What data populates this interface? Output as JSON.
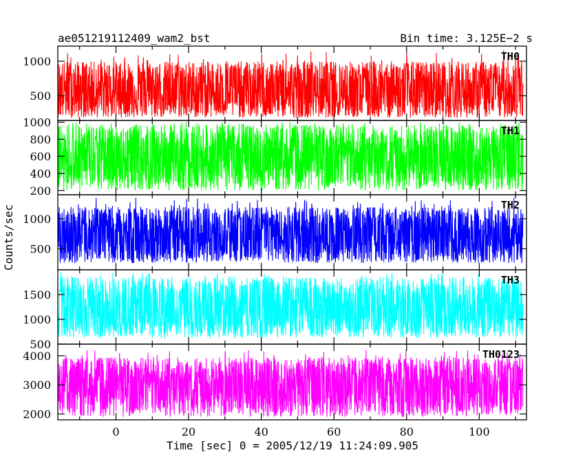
{
  "chart_data": {
    "type": "line",
    "title_left": "ae051219112409_wam2_bst",
    "title_right": "Bin time: 3.125E−2 s",
    "ylabel": "Counts/sec",
    "xlabel": "Time [sec] 0 = 2005/12/19 11:24:09.905",
    "xlim": [
      -16,
      113
    ],
    "x_ticks": [
      0,
      20,
      40,
      60,
      80,
      100
    ],
    "x_tick_labels": [
      "0",
      "20",
      "40",
      "60",
      "80",
      "100"
    ],
    "data_x_range": [
      -16,
      112
    ],
    "bin_time": 0.03125,
    "panels": [
      {
        "name": "TH0",
        "color": "#ff0000",
        "ylim": [
          140,
          1220
        ],
        "y_ticks": [
          500,
          1000
        ],
        "y_tick_labels": [
          "500",
          "1000"
        ],
        "mean": 560,
        "typical_min": 180,
        "typical_max": 1000,
        "max_peak": 1180
      },
      {
        "name": "TH1",
        "color": "#00ff00",
        "ylim": [
          150,
          1020
        ],
        "y_ticks": [
          200,
          400,
          600,
          800,
          1000
        ],
        "y_tick_labels": [
          "200",
          "400",
          "600",
          "800",
          "1000"
        ],
        "mean": 580,
        "typical_min": 200,
        "typical_max": 970,
        "max_peak": 1000
      },
      {
        "name": "TH2",
        "color": "#0000ff",
        "ylim": [
          150,
          1400
        ],
        "y_ticks": [
          500,
          1000
        ],
        "y_tick_labels": [
          "500",
          "1000"
        ],
        "mean": 700,
        "typical_min": 260,
        "typical_max": 1200,
        "max_peak": 1350
      },
      {
        "name": "TH3",
        "color": "#00ffff",
        "ylim": [
          500,
          2000
        ],
        "y_ticks": [
          500,
          1000,
          1500
        ],
        "y_tick_labels": [
          "500",
          "1000",
          "1500"
        ],
        "mean": 1180,
        "typical_min": 620,
        "typical_max": 1850,
        "max_peak": 1950
      },
      {
        "name": "TH0123",
        "color": "#ff00ff",
        "ylim": [
          1800,
          4400
        ],
        "y_ticks": [
          2000,
          3000,
          4000
        ],
        "y_tick_labels": [
          "2000",
          "3000",
          "4000"
        ],
        "mean": 2950,
        "typical_min": 1900,
        "typical_max": 3950,
        "max_peak": 4200
      }
    ]
  }
}
